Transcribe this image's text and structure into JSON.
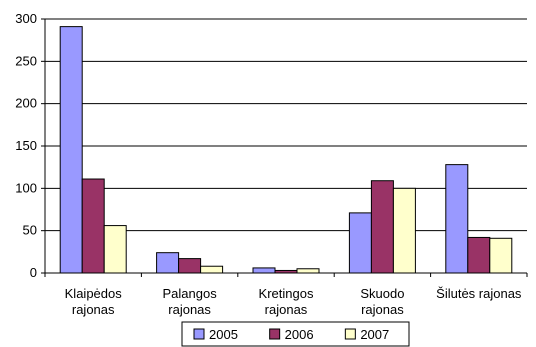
{
  "chart_data": {
    "type": "bar",
    "categories": [
      [
        "Klaipėdos",
        "rajonas"
      ],
      [
        "Palangos",
        "rajonas"
      ],
      [
        "Kretingos",
        "rajonas"
      ],
      [
        "Skuodo",
        "rajonas"
      ],
      [
        "Šilutės rajonas"
      ]
    ],
    "series": [
      {
        "name": "2005",
        "values": [
          291,
          24,
          6,
          71,
          128
        ],
        "color": "#9999ff"
      },
      {
        "name": "2006",
        "values": [
          111,
          17,
          3,
          109,
          42
        ],
        "color": "#993366"
      },
      {
        "name": "2007",
        "values": [
          56,
          8,
          5,
          100,
          41
        ],
        "color": "#ffffcc"
      }
    ],
    "ylim": [
      0,
      300
    ],
    "yticks": [
      "0",
      "50",
      "100",
      "150",
      "200",
      "250",
      "300"
    ],
    "grid": true,
    "legend_position": "bottom"
  }
}
